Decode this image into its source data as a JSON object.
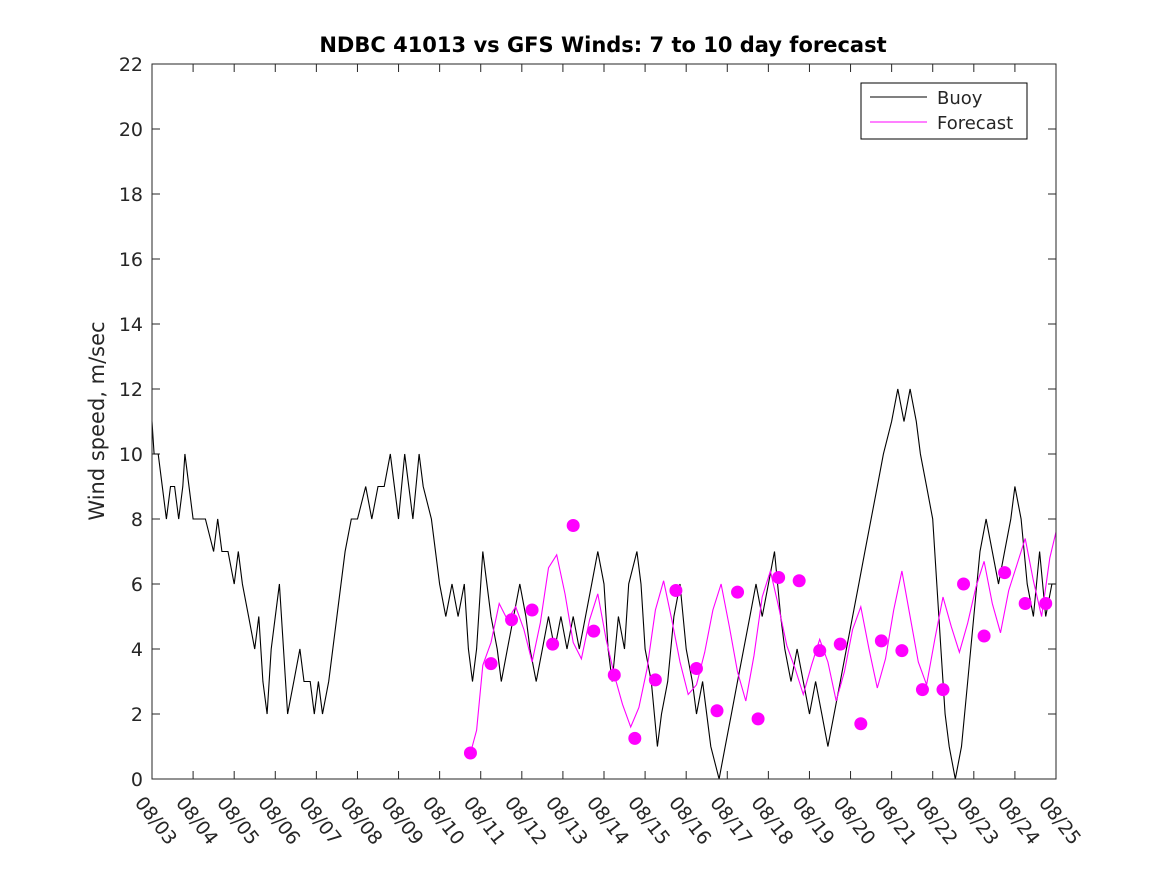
{
  "chart_data": {
    "type": "line",
    "title": "NDBC 41013 vs GFS Winds: 7 to 10 day forecast",
    "xlabel": "",
    "ylabel": "Wind speed, m/sec",
    "ylim": [
      0,
      22
    ],
    "yticks": [
      0,
      2,
      4,
      6,
      8,
      10,
      12,
      14,
      16,
      18,
      20,
      22
    ],
    "xlim_days": [
      0,
      22
    ],
    "xticks": [
      "08/03",
      "08/04",
      "08/05",
      "08/06",
      "08/07",
      "08/08",
      "08/09",
      "08/10",
      "08/11",
      "08/12",
      "08/13",
      "08/14",
      "08/15",
      "08/16",
      "08/17",
      "08/18",
      "08/19",
      "08/20",
      "08/21",
      "08/22",
      "08/23",
      "08/24",
      "08/25"
    ],
    "legend": {
      "position": "top-right",
      "entries": [
        "Buoy",
        "Forecast"
      ]
    },
    "colors": {
      "buoy": "#000000",
      "forecast": "#ff00ff"
    },
    "series": [
      {
        "name": "Buoy",
        "color": "#000000",
        "points": [
          [
            0,
            11
          ],
          [
            0.05,
            10
          ],
          [
            0.15,
            10
          ],
          [
            0.25,
            9
          ],
          [
            0.35,
            8
          ],
          [
            0.45,
            9
          ],
          [
            0.55,
            9
          ],
          [
            0.65,
            8
          ],
          [
            0.75,
            9
          ],
          [
            0.8,
            10
          ],
          [
            0.9,
            9
          ],
          [
            1.0,
            8
          ],
          [
            1.1,
            8
          ],
          [
            1.3,
            8
          ],
          [
            1.5,
            7
          ],
          [
            1.6,
            8
          ],
          [
            1.7,
            7
          ],
          [
            1.85,
            7
          ],
          [
            2.0,
            6
          ],
          [
            2.1,
            7
          ],
          [
            2.2,
            6
          ],
          [
            2.35,
            5
          ],
          [
            2.5,
            4
          ],
          [
            2.6,
            5
          ],
          [
            2.7,
            3
          ],
          [
            2.8,
            2
          ],
          [
            2.9,
            4
          ],
          [
            3.0,
            5
          ],
          [
            3.1,
            6
          ],
          [
            3.2,
            4
          ],
          [
            3.3,
            2
          ],
          [
            3.45,
            3
          ],
          [
            3.6,
            4
          ],
          [
            3.7,
            3
          ],
          [
            3.85,
            3
          ],
          [
            3.95,
            2
          ],
          [
            4.05,
            3
          ],
          [
            4.15,
            2
          ],
          [
            4.3,
            3
          ],
          [
            4.4,
            4
          ],
          [
            4.5,
            5
          ],
          [
            4.6,
            6
          ],
          [
            4.7,
            7
          ],
          [
            4.85,
            8
          ],
          [
            5.0,
            8
          ],
          [
            5.2,
            9
          ],
          [
            5.35,
            8
          ],
          [
            5.5,
            9
          ],
          [
            5.65,
            9
          ],
          [
            5.8,
            10
          ],
          [
            5.9,
            9
          ],
          [
            6.0,
            8
          ],
          [
            6.15,
            10
          ],
          [
            6.25,
            9
          ],
          [
            6.35,
            8
          ],
          [
            6.5,
            10
          ],
          [
            6.6,
            9
          ],
          [
            6.8,
            8
          ],
          [
            6.9,
            7
          ],
          [
            7.0,
            6
          ],
          [
            7.15,
            5
          ],
          [
            7.3,
            6
          ],
          [
            7.45,
            5
          ],
          [
            7.6,
            6
          ],
          [
            7.7,
            4
          ],
          [
            7.8,
            3
          ],
          [
            7.9,
            4
          ],
          [
            8.05,
            7
          ],
          [
            8.15,
            6
          ],
          [
            8.25,
            5
          ],
          [
            8.4,
            4
          ],
          [
            8.5,
            3
          ],
          [
            8.65,
            4
          ],
          [
            8.8,
            5
          ],
          [
            8.95,
            6
          ],
          [
            9.1,
            5
          ],
          [
            9.2,
            4
          ],
          [
            9.35,
            3
          ],
          [
            9.5,
            4
          ],
          [
            9.65,
            5
          ],
          [
            9.8,
            4
          ],
          [
            9.95,
            5
          ],
          [
            10.1,
            4
          ],
          [
            10.25,
            5
          ],
          [
            10.4,
            4
          ],
          [
            10.55,
            5
          ],
          [
            10.7,
            6
          ],
          [
            10.85,
            7
          ],
          [
            11.0,
            6
          ],
          [
            11.1,
            4
          ],
          [
            11.2,
            3
          ],
          [
            11.35,
            5
          ],
          [
            11.5,
            4
          ],
          [
            11.6,
            6
          ],
          [
            11.8,
            7
          ],
          [
            11.9,
            6
          ],
          [
            12.0,
            4
          ],
          [
            12.15,
            3
          ],
          [
            12.3,
            1
          ],
          [
            12.4,
            2
          ],
          [
            12.55,
            3
          ],
          [
            12.7,
            5
          ],
          [
            12.85,
            6
          ],
          [
            13.0,
            4
          ],
          [
            13.15,
            3
          ],
          [
            13.25,
            2
          ],
          [
            13.4,
            3
          ],
          [
            13.6,
            1
          ],
          [
            13.8,
            0
          ],
          [
            13.95,
            1
          ],
          [
            14.1,
            2
          ],
          [
            14.25,
            3
          ],
          [
            14.4,
            4
          ],
          [
            14.55,
            5
          ],
          [
            14.7,
            6
          ],
          [
            14.85,
            5
          ],
          [
            15.0,
            6
          ],
          [
            15.15,
            7
          ],
          [
            15.3,
            5
          ],
          [
            15.4,
            4
          ],
          [
            15.55,
            3
          ],
          [
            15.7,
            4
          ],
          [
            15.85,
            3
          ],
          [
            16.0,
            2
          ],
          [
            16.15,
            3
          ],
          [
            16.3,
            2
          ],
          [
            16.45,
            1
          ],
          [
            16.6,
            2
          ],
          [
            16.75,
            3
          ],
          [
            16.9,
            4
          ],
          [
            17.05,
            5
          ],
          [
            17.2,
            6
          ],
          [
            17.35,
            7
          ],
          [
            17.5,
            8
          ],
          [
            17.65,
            9
          ],
          [
            17.8,
            10
          ],
          [
            18.0,
            11
          ],
          [
            18.15,
            12
          ],
          [
            18.3,
            11
          ],
          [
            18.45,
            12
          ],
          [
            18.6,
            11
          ],
          [
            18.7,
            10
          ],
          [
            18.85,
            9
          ],
          [
            19.0,
            8
          ],
          [
            19.1,
            6
          ],
          [
            19.2,
            4
          ],
          [
            19.3,
            2
          ],
          [
            19.4,
            1
          ],
          [
            19.55,
            0
          ],
          [
            19.7,
            1
          ],
          [
            19.85,
            3
          ],
          [
            20.0,
            5
          ],
          [
            20.15,
            7
          ],
          [
            20.3,
            8
          ],
          [
            20.45,
            7
          ],
          [
            20.6,
            6
          ],
          [
            20.75,
            7
          ],
          [
            20.9,
            8
          ],
          [
            21.0,
            9
          ],
          [
            21.15,
            8
          ],
          [
            21.3,
            6
          ],
          [
            21.45,
            5
          ],
          [
            21.6,
            7
          ],
          [
            21.75,
            5
          ],
          [
            21.9,
            6
          ],
          [
            22.0,
            6
          ]
        ]
      },
      {
        "name": "Forecast",
        "color": "#ff00ff",
        "points": [
          [
            7.75,
            0.8
          ],
          [
            7.9,
            1.5
          ],
          [
            8.05,
            3.5
          ],
          [
            8.25,
            4.2
          ],
          [
            8.45,
            5.4
          ],
          [
            8.65,
            4.9
          ],
          [
            8.85,
            5.3
          ],
          [
            9.05,
            4.6
          ],
          [
            9.25,
            3.6
          ],
          [
            9.45,
            4.8
          ],
          [
            9.65,
            6.5
          ],
          [
            9.85,
            6.9
          ],
          [
            10.05,
            5.7
          ],
          [
            10.25,
            4.2
          ],
          [
            10.45,
            3.7
          ],
          [
            10.65,
            4.9
          ],
          [
            10.85,
            5.7
          ],
          [
            11.05,
            4.3
          ],
          [
            11.25,
            3.2
          ],
          [
            11.45,
            2.3
          ],
          [
            11.65,
            1.6
          ],
          [
            11.85,
            2.2
          ],
          [
            12.05,
            3.4
          ],
          [
            12.25,
            5.2
          ],
          [
            12.45,
            6.1
          ],
          [
            12.65,
            4.9
          ],
          [
            12.85,
            3.6
          ],
          [
            13.05,
            2.6
          ],
          [
            13.25,
            2.9
          ],
          [
            13.45,
            3.9
          ],
          [
            13.65,
            5.2
          ],
          [
            13.85,
            6.0
          ],
          [
            14.05,
            4.7
          ],
          [
            14.25,
            3.3
          ],
          [
            14.45,
            2.4
          ],
          [
            14.65,
            3.8
          ],
          [
            14.85,
            5.6
          ],
          [
            15.05,
            6.4
          ],
          [
            15.25,
            5.3
          ],
          [
            15.45,
            4.1
          ],
          [
            15.65,
            3.4
          ],
          [
            15.85,
            2.6
          ],
          [
            16.05,
            3.5
          ],
          [
            16.25,
            4.3
          ],
          [
            16.45,
            3.6
          ],
          [
            16.65,
            2.4
          ],
          [
            16.85,
            3.3
          ],
          [
            17.05,
            4.6
          ],
          [
            17.25,
            5.3
          ],
          [
            17.45,
            4.0
          ],
          [
            17.65,
            2.8
          ],
          [
            17.85,
            3.7
          ],
          [
            18.05,
            5.2
          ],
          [
            18.25,
            6.4
          ],
          [
            18.45,
            5.0
          ],
          [
            18.65,
            3.6
          ],
          [
            18.85,
            2.9
          ],
          [
            19.05,
            4.3
          ],
          [
            19.25,
            5.6
          ],
          [
            19.45,
            4.7
          ],
          [
            19.65,
            3.9
          ],
          [
            19.85,
            4.8
          ],
          [
            20.05,
            5.9
          ],
          [
            20.25,
            6.7
          ],
          [
            20.45,
            5.4
          ],
          [
            20.65,
            4.5
          ],
          [
            20.85,
            5.8
          ],
          [
            21.05,
            6.6
          ],
          [
            21.25,
            7.4
          ],
          [
            21.45,
            6.1
          ],
          [
            21.65,
            5.0
          ],
          [
            21.85,
            6.8
          ],
          [
            22.0,
            7.6
          ]
        ]
      },
      {
        "name": "Forecast markers",
        "color": "#ff00ff",
        "markers": true,
        "points": [
          [
            7.75,
            0.8
          ],
          [
            8.25,
            3.55
          ],
          [
            8.75,
            4.9
          ],
          [
            9.25,
            5.2
          ],
          [
            9.75,
            4.15
          ],
          [
            10.25,
            7.8
          ],
          [
            10.75,
            4.55
          ],
          [
            11.25,
            3.2
          ],
          [
            11.75,
            1.25
          ],
          [
            12.25,
            3.05
          ],
          [
            12.75,
            5.8
          ],
          [
            13.25,
            3.4
          ],
          [
            13.75,
            2.1
          ],
          [
            14.25,
            5.75
          ],
          [
            14.75,
            1.85
          ],
          [
            15.25,
            6.2
          ],
          [
            15.75,
            6.1
          ],
          [
            16.25,
            3.95
          ],
          [
            16.75,
            4.15
          ],
          [
            17.25,
            1.7
          ],
          [
            17.75,
            4.25
          ],
          [
            18.25,
            3.95
          ],
          [
            18.75,
            2.75
          ],
          [
            19.25,
            2.75
          ],
          [
            19.75,
            6.0
          ],
          [
            20.25,
            4.4
          ],
          [
            20.75,
            6.35
          ],
          [
            21.25,
            5.4
          ],
          [
            21.75,
            5.4
          ]
        ]
      }
    ]
  }
}
